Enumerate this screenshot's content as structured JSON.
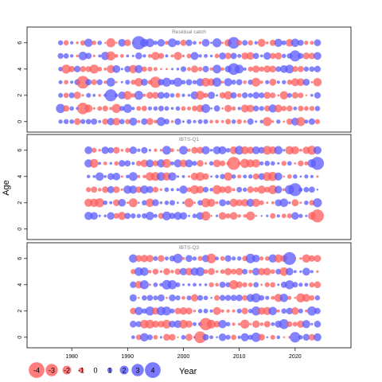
{
  "chart_data": [
    {
      "type": "scatter",
      "title": "Residual catch",
      "ages": [
        0,
        1,
        2,
        3,
        4,
        5,
        6
      ],
      "year_range": [
        1978,
        2024
      ],
      "y_ticks": [
        0,
        2,
        4,
        6
      ],
      "ylim": [
        -0.8,
        7.2
      ],
      "encoding": "bubble size = |residual|, red = negative, blue = positive"
    },
    {
      "type": "scatter",
      "title": "IBTS-Q1",
      "ages": [
        1,
        2,
        3,
        4,
        5,
        6
      ],
      "year_range": [
        1983,
        2024
      ],
      "y_ticks": [
        0,
        2,
        4,
        6
      ],
      "ylim": [
        -0.8,
        7.2
      ],
      "encoding": "bubble size = |residual|, red = negative, blue = positive"
    },
    {
      "type": "scatter",
      "title": "IBTS-Q3",
      "ages": [
        0,
        1,
        2,
        3,
        4,
        5,
        6
      ],
      "year_range": [
        1991,
        2024
      ],
      "y_ticks": [
        0,
        2,
        4,
        6
      ],
      "ylim": [
        -0.8,
        7.2
      ],
      "encoding": "bubble size = |residual|, red = negative, blue = positive"
    }
  ],
  "xlim": [
    1972,
    2030
  ],
  "x_ticks": [
    1980,
    1990,
    2000,
    2010,
    2020
  ],
  "y_axis_label": "Age",
  "x_axis_label": "Year",
  "legend": {
    "values": [
      -4,
      -3,
      -2,
      -1,
      0,
      1,
      2,
      3,
      4
    ],
    "labels": [
      "-4",
      "-3",
      "-2",
      "-1",
      "0",
      "1",
      "2",
      "3",
      "4"
    ],
    "placement": "bottom-left"
  },
  "colors": {
    "negative": "#ff5c5c",
    "positive": "#5a5aff",
    "panel_border": "#000000",
    "title_text": "#808080"
  }
}
